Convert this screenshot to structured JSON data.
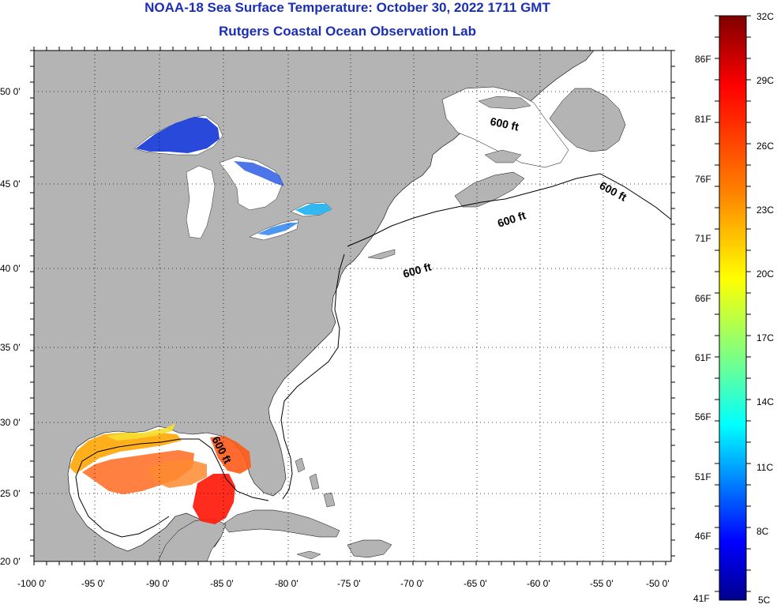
{
  "title": "NOAA-18 Sea Surface Temperature:  October 30, 2022 1711 GMT",
  "subtitle": "Rutgers Coastal Ocean Observation Lab",
  "map": {
    "lon_ticks": [
      "-100 0'",
      "-95 0'",
      "-90 0'",
      "-85 0'",
      "-80 0'",
      "-75 0'",
      "-70 0'",
      "-65 0'",
      "-60 0'",
      "-55 0'",
      "-50 0'"
    ],
    "lat_ticks": [
      "50 0'",
      "45 0'",
      "40 0'",
      "35 0'",
      "30 0'",
      "25 0'",
      "20 0'"
    ],
    "contour_labels": [
      "600 ft",
      "600 ft",
      "600 ft",
      "600 ft",
      "600 ft"
    ],
    "colors": {
      "land": "#b4b4b4",
      "ocean": "#ffffff",
      "grid": "#000000"
    }
  },
  "colorbar": {
    "celsius_labels": [
      "32C",
      "29C",
      "26C",
      "23C",
      "20C",
      "17C",
      "14C",
      "11C",
      "8C",
      "5C"
    ],
    "fahrenheit_labels": [
      "86F",
      "81F",
      "76F",
      "71F",
      "66F",
      "61F",
      "56F",
      "51F",
      "46F",
      "41F"
    ],
    "gradient_colors": [
      "#7f0000",
      "#ff0000",
      "#ff8000",
      "#ffff00",
      "#80ff80",
      "#00ffff",
      "#0080ff",
      "#0000ff",
      "#00008f"
    ]
  }
}
